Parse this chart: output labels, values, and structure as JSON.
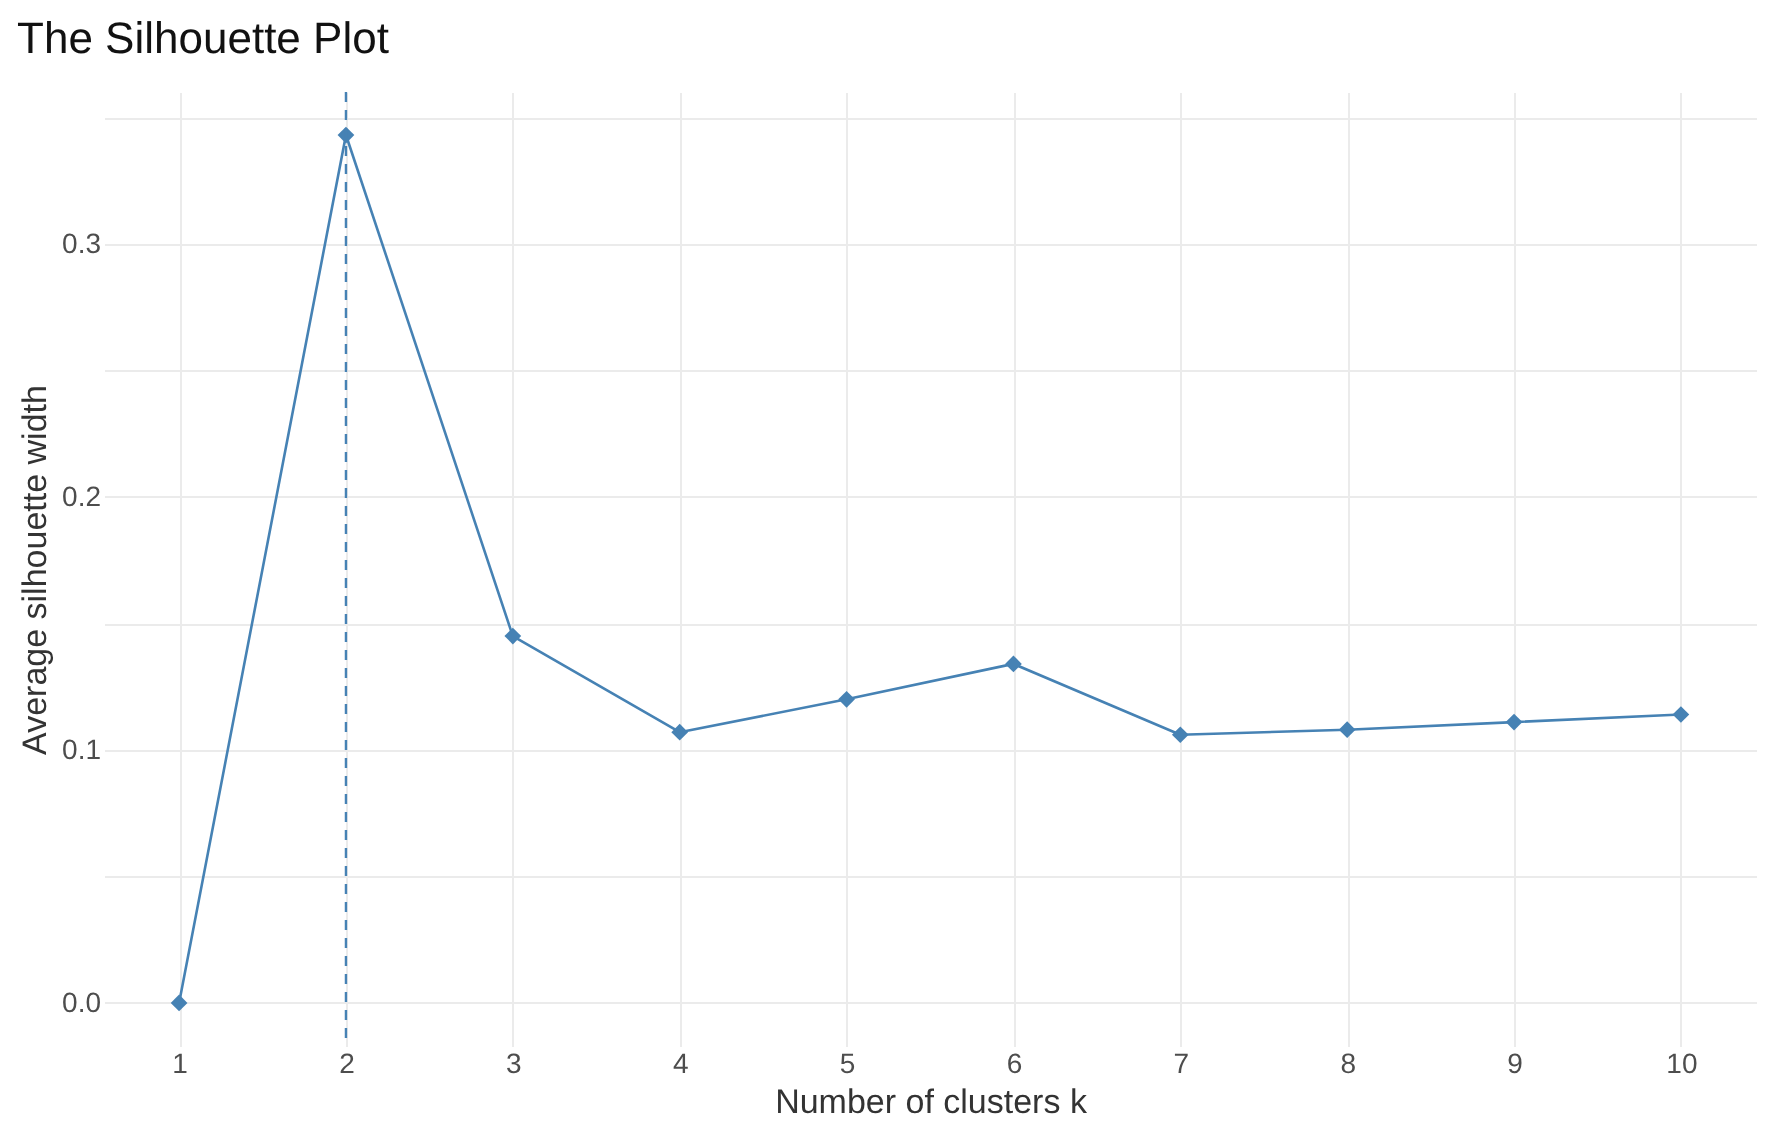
{
  "chart_data": {
    "type": "line",
    "title": "The Silhouette Plot",
    "xlabel": "Number of clusters k",
    "ylabel": "Average silhouette width",
    "x": [
      1,
      2,
      3,
      4,
      5,
      6,
      7,
      8,
      9,
      10
    ],
    "series": [
      {
        "color": "#4682b4",
        "values": [
          0.0,
          0.343,
          0.145,
          0.107,
          0.12,
          0.134,
          0.106,
          0.108,
          0.111,
          0.114
        ]
      }
    ],
    "xlim": [
      0.55,
      10.45
    ],
    "xticks": [
      1,
      2,
      3,
      4,
      5,
      6,
      7,
      8,
      9,
      10
    ],
    "ylim": [
      -0.017,
      0.36
    ],
    "yticks": [
      {
        "value": 0.0,
        "label": "0.0"
      },
      {
        "value": 0.05,
        "label": null
      },
      {
        "value": 0.1,
        "label": "0.1"
      },
      {
        "value": 0.15,
        "label": null
      },
      {
        "value": 0.2,
        "label": "0.2"
      },
      {
        "value": 0.25,
        "label": null
      },
      {
        "value": 0.3,
        "label": "0.3"
      },
      {
        "value": 0.35,
        "label": null
      }
    ],
    "ref_lines": [
      {
        "axis": "x",
        "value": 2,
        "color": "#4682b4",
        "line_style": "dashed"
      }
    ],
    "grid": true,
    "marker": "diamond",
    "line_style": "solid"
  }
}
